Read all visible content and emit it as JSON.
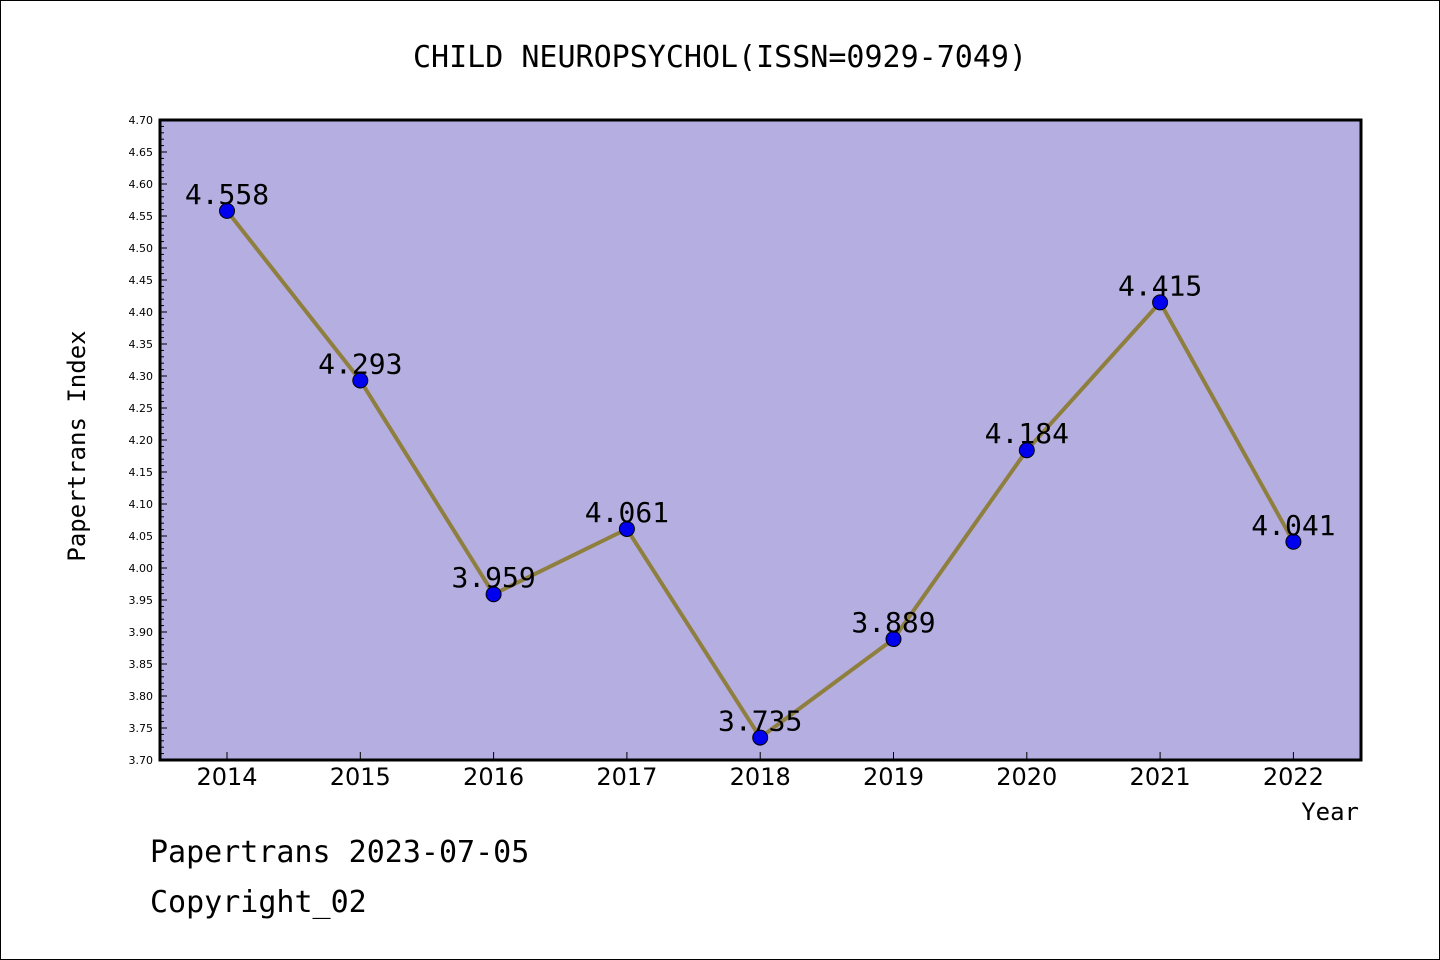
{
  "chart_data": {
    "type": "line",
    "title": "CHILD NEUROPSYCHOL(ISSN=0929-7049)",
    "xlabel": "Year",
    "ylabel": "Papertrans Index",
    "categories": [
      "2014",
      "2015",
      "2016",
      "2017",
      "2018",
      "2019",
      "2020",
      "2021",
      "2022"
    ],
    "values": [
      4.558,
      4.293,
      3.959,
      4.061,
      3.735,
      3.889,
      4.184,
      4.415,
      4.041
    ],
    "data_labels": [
      "4.558",
      "4.293",
      "3.959",
      "4.061",
      "3.735",
      "3.889",
      "4.184",
      "4.415",
      "4.041"
    ],
    "ylim": [
      3.7,
      4.7
    ],
    "ytick_step": 0.05,
    "grid": false,
    "colors": {
      "plot_background": "#b5aee1",
      "line": "#8f7f3f",
      "marker": "#0000ee",
      "axis": "#000000"
    }
  },
  "footer": {
    "line1": "Papertrans 2023-07-05",
    "line2": "Copyright_02"
  }
}
